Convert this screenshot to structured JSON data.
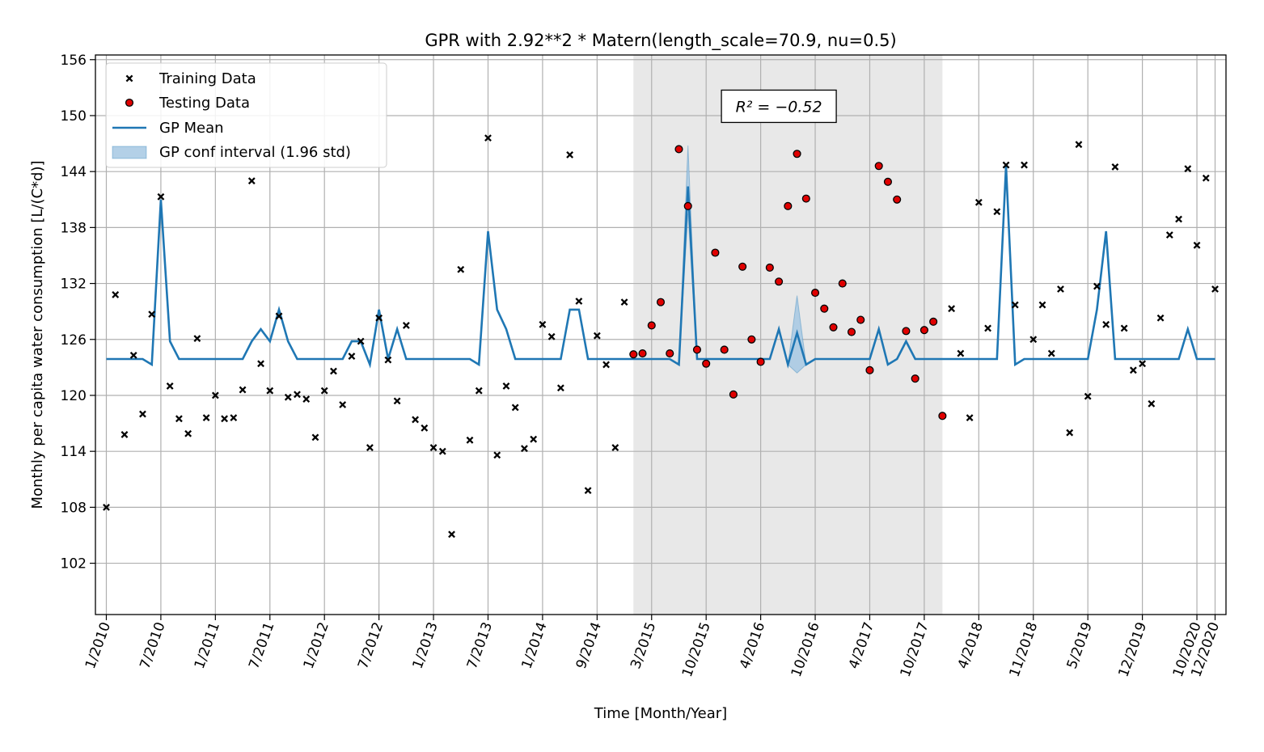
{
  "chart_data": {
    "type": "scatter",
    "title": "GPR with 2.92**2 * Matern(length_scale=70.9, nu=0.5)",
    "xlabel": "Time [Month/Year]",
    "ylabel": "Monthly per capita water consumption [L/(C*d)]",
    "ylim": [
      96.5,
      156.5
    ],
    "xlim": [
      -1.2,
      123.2
    ],
    "yticks": [
      102,
      108,
      114,
      120,
      126,
      132,
      138,
      144,
      150,
      156
    ],
    "xticks": [
      {
        "x": 0,
        "label": "1/2010"
      },
      {
        "x": 6,
        "label": "7/2010"
      },
      {
        "x": 12,
        "label": "1/2011"
      },
      {
        "x": 18,
        "label": "7/2011"
      },
      {
        "x": 24,
        "label": "1/2012"
      },
      {
        "x": 30,
        "label": "7/2012"
      },
      {
        "x": 36,
        "label": "1/2013"
      },
      {
        "x": 42,
        "label": "7/2013"
      },
      {
        "x": 48,
        "label": "1/2014"
      },
      {
        "x": 54,
        "label": "9/2014"
      },
      {
        "x": 60,
        "label": "3/2015"
      },
      {
        "x": 66,
        "label": "10/2015"
      },
      {
        "x": 72,
        "label": "4/2016"
      },
      {
        "x": 78,
        "label": "10/2016"
      },
      {
        "x": 84,
        "label": "4/2017"
      },
      {
        "x": 90,
        "label": "10/2017"
      },
      {
        "x": 96,
        "label": "4/2018"
      },
      {
        "x": 102,
        "label": "11/2018"
      },
      {
        "x": 108,
        "label": "5/2019"
      },
      {
        "x": 114,
        "label": "12/2019"
      },
      {
        "x": 120,
        "label": "10/2020"
      },
      {
        "x": 122,
        "label": "12/2020"
      }
    ],
    "grid": true,
    "legend_position": "top-left",
    "legend": [
      {
        "label": "Training Data",
        "kind": "x-marker"
      },
      {
        "label": "Testing Data",
        "kind": "circle-marker"
      },
      {
        "label": "GP Mean",
        "kind": "line"
      },
      {
        "label": "GP conf interval (1.96 std)",
        "kind": "band"
      }
    ],
    "annotation": {
      "text": "R² = −0.52",
      "x": 74,
      "y": 151
    },
    "shaded_region": [
      58,
      92
    ],
    "colors": {
      "mean": "#1f77b4",
      "band": "#a6c8e3",
      "test_fill": "#e00000",
      "shade": "#e8e8e8"
    },
    "training": [
      [
        0,
        108.0
      ],
      [
        1,
        130.8
      ],
      [
        2,
        115.8
      ],
      [
        3,
        124.3
      ],
      [
        4,
        118.0
      ],
      [
        5,
        128.7
      ],
      [
        6,
        141.3
      ],
      [
        7,
        121.0
      ],
      [
        8,
        117.5
      ],
      [
        9,
        115.9
      ],
      [
        10,
        126.1
      ],
      [
        11,
        117.6
      ],
      [
        12,
        120.0
      ],
      [
        13,
        117.5
      ],
      [
        14,
        117.6
      ],
      [
        15,
        120.6
      ],
      [
        16,
        143.0
      ],
      [
        17,
        123.4
      ],
      [
        18,
        120.5
      ],
      [
        19,
        128.5
      ],
      [
        20,
        119.8
      ],
      [
        21,
        120.1
      ],
      [
        22,
        119.6
      ],
      [
        23,
        115.5
      ],
      [
        24,
        120.5
      ],
      [
        25,
        122.6
      ],
      [
        26,
        119.0
      ],
      [
        27,
        124.2
      ],
      [
        28,
        125.8
      ],
      [
        29,
        114.4
      ],
      [
        30,
        128.3
      ],
      [
        31,
        123.8
      ],
      [
        32,
        119.4
      ],
      [
        33,
        127.5
      ],
      [
        34,
        117.4
      ],
      [
        35,
        116.5
      ],
      [
        36,
        114.4
      ],
      [
        37,
        114.0
      ],
      [
        38,
        105.1
      ],
      [
        39,
        133.5
      ],
      [
        40,
        115.2
      ],
      [
        41,
        120.5
      ],
      [
        42,
        147.6
      ],
      [
        43,
        113.6
      ],
      [
        44,
        121.0
      ],
      [
        45,
        118.7
      ],
      [
        46,
        114.3
      ],
      [
        47,
        115.3
      ],
      [
        48,
        127.6
      ],
      [
        49,
        126.3
      ],
      [
        50,
        120.8
      ],
      [
        51,
        145.8
      ],
      [
        52,
        130.1
      ],
      [
        53,
        109.8
      ],
      [
        54,
        126.4
      ],
      [
        55,
        123.3
      ],
      [
        56,
        114.4
      ],
      [
        57,
        130.0
      ],
      [
        93,
        129.3
      ],
      [
        94,
        124.5
      ],
      [
        95,
        117.6
      ],
      [
        96,
        140.7
      ],
      [
        97,
        127.2
      ],
      [
        98,
        139.7
      ],
      [
        99,
        144.7
      ],
      [
        100,
        129.7
      ],
      [
        101,
        144.7
      ],
      [
        102,
        126.0
      ],
      [
        103,
        129.7
      ],
      [
        104,
        124.5
      ],
      [
        105,
        131.4
      ],
      [
        106,
        116.0
      ],
      [
        107,
        146.9
      ],
      [
        108,
        119.9
      ],
      [
        109,
        131.7
      ],
      [
        110,
        127.6
      ],
      [
        111,
        144.5
      ],
      [
        112,
        127.2
      ],
      [
        113,
        122.7
      ],
      [
        114,
        123.4
      ],
      [
        115,
        119.1
      ],
      [
        116,
        128.3
      ],
      [
        117,
        137.2
      ],
      [
        118,
        138.9
      ],
      [
        119,
        144.3
      ],
      [
        120,
        136.1
      ],
      [
        121,
        143.3
      ],
      [
        122,
        131.4
      ]
    ],
    "testing": [
      [
        58,
        124.4
      ],
      [
        59,
        124.5
      ],
      [
        60,
        127.5
      ],
      [
        61,
        130.0
      ],
      [
        62,
        124.5
      ],
      [
        63,
        146.4
      ],
      [
        64,
        140.3
      ],
      [
        65,
        124.9
      ],
      [
        66,
        123.4
      ],
      [
        67,
        135.3
      ],
      [
        68,
        124.9
      ],
      [
        69,
        120.1
      ],
      [
        70,
        133.8
      ],
      [
        71,
        126.0
      ],
      [
        72,
        123.6
      ],
      [
        73,
        133.7
      ],
      [
        74,
        132.2
      ],
      [
        75,
        140.3
      ],
      [
        76,
        145.9
      ],
      [
        77,
        141.1
      ],
      [
        78,
        131.0
      ],
      [
        79,
        129.3
      ],
      [
        80,
        127.3
      ],
      [
        81,
        132.0
      ],
      [
        82,
        126.8
      ],
      [
        83,
        128.1
      ],
      [
        84,
        122.7
      ],
      [
        85,
        144.6
      ],
      [
        86,
        142.9
      ],
      [
        87,
        141.0
      ],
      [
        88,
        126.9
      ],
      [
        89,
        121.8
      ],
      [
        90,
        127.0
      ],
      [
        91,
        127.9
      ],
      [
        92,
        117.8
      ]
    ],
    "gp_mean": [
      [
        0,
        123.9
      ],
      [
        1,
        123.9
      ],
      [
        2,
        123.9
      ],
      [
        3,
        123.9
      ],
      [
        4,
        123.9
      ],
      [
        5,
        123.3
      ],
      [
        6,
        141.0
      ],
      [
        7,
        125.8
      ],
      [
        8,
        123.9
      ],
      [
        9,
        123.9
      ],
      [
        10,
        123.9
      ],
      [
        11,
        123.9
      ],
      [
        12,
        123.9
      ],
      [
        13,
        123.9
      ],
      [
        14,
        123.9
      ],
      [
        15,
        123.9
      ],
      [
        16,
        125.8
      ],
      [
        17,
        127.1
      ],
      [
        18,
        125.8
      ],
      [
        19,
        129.2
      ],
      [
        20,
        125.8
      ],
      [
        21,
        123.9
      ],
      [
        22,
        123.9
      ],
      [
        23,
        123.9
      ],
      [
        24,
        123.9
      ],
      [
        25,
        123.9
      ],
      [
        26,
        123.9
      ],
      [
        27,
        125.8
      ],
      [
        28,
        125.8
      ],
      [
        29,
        123.3
      ],
      [
        30,
        129.2
      ],
      [
        31,
        123.9
      ],
      [
        32,
        127.1
      ],
      [
        33,
        123.9
      ],
      [
        34,
        123.9
      ],
      [
        35,
        123.9
      ],
      [
        36,
        123.9
      ],
      [
        37,
        123.9
      ],
      [
        38,
        123.9
      ],
      [
        39,
        123.9
      ],
      [
        40,
        123.9
      ],
      [
        41,
        123.3
      ],
      [
        42,
        137.6
      ],
      [
        43,
        129.2
      ],
      [
        44,
        127.1
      ],
      [
        45,
        123.9
      ],
      [
        46,
        123.9
      ],
      [
        47,
        123.9
      ],
      [
        48,
        123.9
      ],
      [
        49,
        123.9
      ],
      [
        50,
        123.9
      ],
      [
        51,
        129.2
      ],
      [
        52,
        129.2
      ],
      [
        53,
        123.9
      ],
      [
        54,
        123.9
      ],
      [
        55,
        123.9
      ],
      [
        56,
        123.9
      ],
      [
        57,
        123.9
      ],
      [
        58,
        123.9
      ],
      [
        59,
        123.9
      ],
      [
        60,
        123.9
      ],
      [
        61,
        123.9
      ],
      [
        62,
        123.9
      ],
      [
        63,
        123.3
      ],
      [
        64,
        142.4
      ],
      [
        65,
        123.9
      ],
      [
        66,
        123.9
      ],
      [
        67,
        123.9
      ],
      [
        68,
        123.9
      ],
      [
        69,
        123.9
      ],
      [
        70,
        123.9
      ],
      [
        71,
        123.9
      ],
      [
        72,
        123.9
      ],
      [
        73,
        123.9
      ],
      [
        74,
        127.1
      ],
      [
        75,
        123.3
      ],
      [
        76,
        126.7
      ],
      [
        77,
        123.3
      ],
      [
        78,
        123.9
      ],
      [
        79,
        123.9
      ],
      [
        80,
        123.9
      ],
      [
        81,
        123.9
      ],
      [
        82,
        123.9
      ],
      [
        83,
        123.9
      ],
      [
        84,
        123.9
      ],
      [
        85,
        127.1
      ],
      [
        86,
        123.3
      ],
      [
        87,
        123.9
      ],
      [
        88,
        125.8
      ],
      [
        89,
        123.9
      ],
      [
        90,
        123.9
      ],
      [
        91,
        123.9
      ],
      [
        92,
        123.9
      ],
      [
        93,
        123.9
      ],
      [
        94,
        123.9
      ],
      [
        95,
        123.9
      ],
      [
        96,
        123.9
      ],
      [
        97,
        123.9
      ],
      [
        98,
        123.9
      ],
      [
        99,
        144.6
      ],
      [
        100,
        123.3
      ],
      [
        101,
        123.9
      ],
      [
        102,
        123.9
      ],
      [
        103,
        123.9
      ],
      [
        104,
        123.9
      ],
      [
        105,
        123.9
      ],
      [
        106,
        123.9
      ],
      [
        107,
        123.9
      ],
      [
        108,
        123.9
      ],
      [
        109,
        129.2
      ],
      [
        110,
        137.6
      ],
      [
        111,
        123.9
      ],
      [
        112,
        123.9
      ],
      [
        113,
        123.9
      ],
      [
        114,
        123.9
      ],
      [
        115,
        123.9
      ],
      [
        116,
        123.9
      ],
      [
        117,
        123.9
      ],
      [
        118,
        123.9
      ],
      [
        119,
        127.1
      ],
      [
        120,
        123.9
      ],
      [
        121,
        123.9
      ],
      [
        122,
        123.9
      ]
    ],
    "gp_band": [
      {
        "x": 63,
        "lo": 123.3,
        "hi": 123.3
      },
      {
        "x": 64,
        "lo": 139.5,
        "hi": 146.8
      },
      {
        "x": 65,
        "lo": 123.9,
        "hi": 123.9
      },
      {
        "x": 75,
        "lo": 123.3,
        "hi": 123.3
      },
      {
        "x": 76,
        "lo": 122.4,
        "hi": 130.7
      },
      {
        "x": 77,
        "lo": 123.3,
        "hi": 123.3
      }
    ]
  }
}
